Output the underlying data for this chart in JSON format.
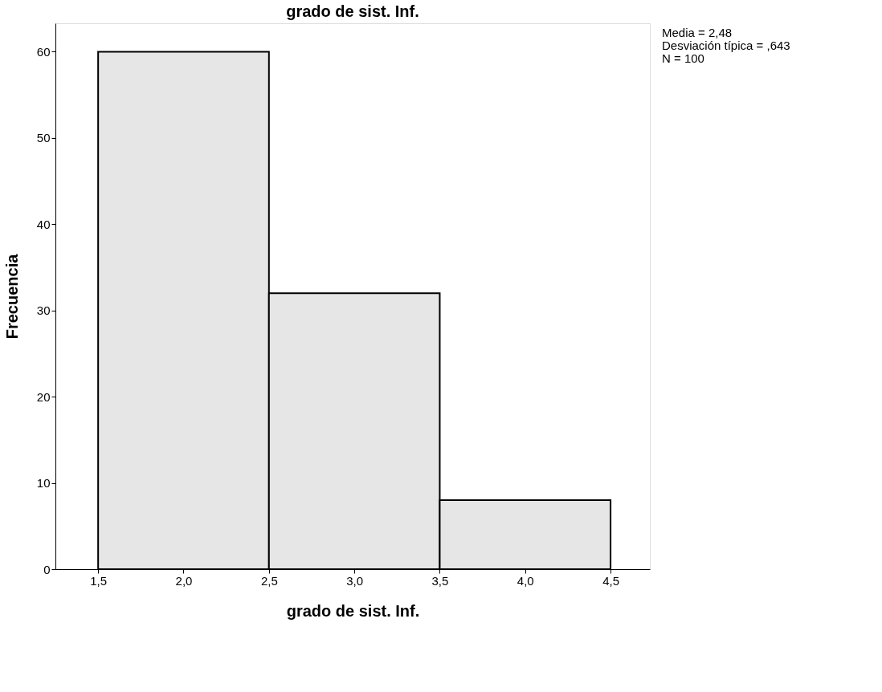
{
  "chart_data": {
    "type": "histogram",
    "title": "grado de sist. Inf.",
    "xlabel": "grado de sist. Inf.",
    "ylabel": "Frecuencia",
    "bins": [
      1.5,
      2.5,
      3.5,
      4.5
    ],
    "values": [
      60,
      32,
      8
    ],
    "color": "#e6e6e6",
    "xlim": [
      1.25,
      4.73
    ],
    "ylim": [
      0,
      63.3
    ],
    "xticks": [
      {
        "value": 1.5,
        "label": "1,5"
      },
      {
        "value": 2.0,
        "label": "2,0"
      },
      {
        "value": 2.5,
        "label": "2,5"
      },
      {
        "value": 3.0,
        "label": "3,0"
      },
      {
        "value": 3.5,
        "label": "3,5"
      },
      {
        "value": 4.0,
        "label": "4,0"
      },
      {
        "value": 4.5,
        "label": "4,5"
      }
    ],
    "yticks": [
      0,
      10,
      20,
      30,
      40,
      50,
      60
    ],
    "annotations": [
      "Media = 2,48",
      "Desviación típica = ,643",
      "N = 100"
    ],
    "grid": false
  }
}
